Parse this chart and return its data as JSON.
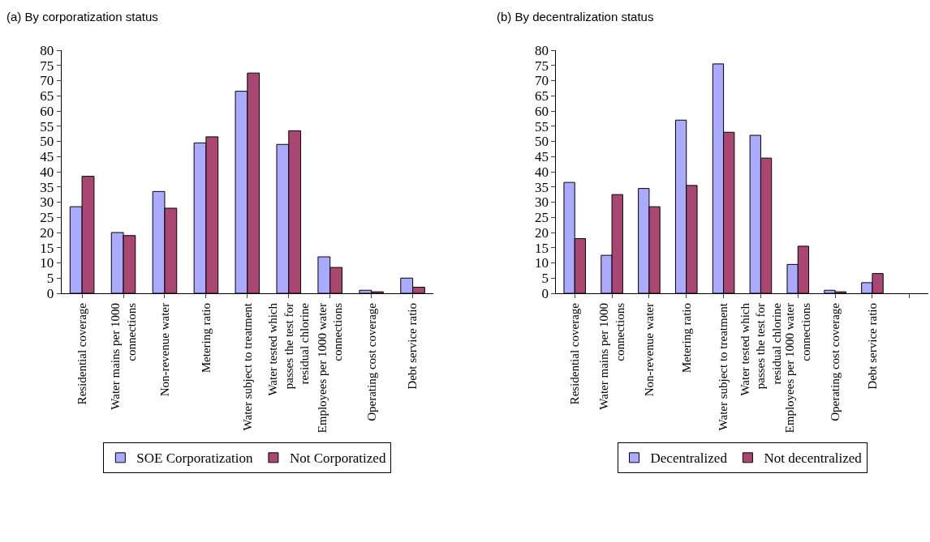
{
  "chart_data": [
    {
      "type": "bar",
      "title": "(a) By corporatization status",
      "categories": [
        "Residential coverage",
        "Water mains per 1000 connections",
        "Non-revenue water",
        "Metering ratio",
        "Water subject to treatment",
        "Water tested which passes the test for residual chlorine",
        "Employees per 1000 water connections",
        "Operating cost coverage",
        "Debt service ratio"
      ],
      "series": [
        {
          "name": "SOE Corporatization",
          "color": "#aaaaff",
          "values": [
            28.5,
            20,
            33.5,
            49.5,
            66.5,
            49,
            12,
            1,
            5
          ]
        },
        {
          "name": "Not Corporatized",
          "color": "#a94772",
          "values": [
            38.5,
            19,
            28,
            51.5,
            72.5,
            53.5,
            8.5,
            0.5,
            2
          ]
        }
      ],
      "ylim": [
        0,
        80
      ],
      "yticks": [
        0,
        5,
        10,
        15,
        20,
        25,
        30,
        35,
        40,
        45,
        50,
        55,
        60,
        65,
        70,
        75,
        80
      ],
      "legend": "bottom"
    },
    {
      "type": "bar",
      "title": "(b) By decentralization status",
      "categories": [
        "Residential coverage",
        "Water mains per 1000 connections",
        "Non-revenue water",
        "Metering ratio",
        "Water subject to treatment",
        "Water tested which passes the test for residual chlorine",
        "Employees per 1000 water connections",
        "Operating cost coverage",
        "Debt service ratio",
        null
      ],
      "series": [
        {
          "name": "Decentralized",
          "color": "#aaaaff",
          "values": [
            36.5,
            12.5,
            34.5,
            57,
            75.5,
            52,
            9.5,
            1,
            3.5,
            null
          ]
        },
        {
          "name": "Not decentralized",
          "color": "#a94772",
          "values": [
            18,
            32.5,
            28.5,
            35.5,
            53,
            44.5,
            15.5,
            0.5,
            6.5,
            null
          ]
        }
      ],
      "ylim": [
        0,
        80
      ],
      "yticks": [
        0,
        5,
        10,
        15,
        20,
        25,
        30,
        35,
        40,
        45,
        50,
        55,
        60,
        65,
        70,
        75,
        80
      ],
      "legend": "bottom"
    }
  ]
}
